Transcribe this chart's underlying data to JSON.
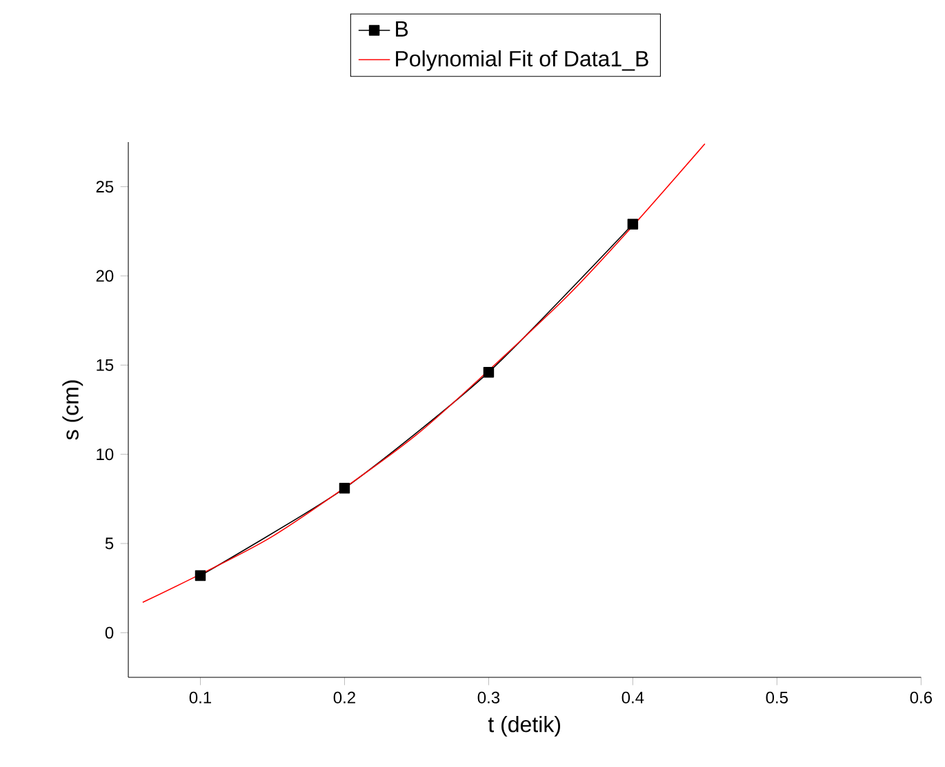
{
  "chart_data": {
    "type": "line",
    "xlabel": "t (detik)",
    "ylabel": "s (cm)",
    "xlim": [
      0.05,
      0.6
    ],
    "ylim": [
      -2.5,
      27.5
    ],
    "xticks": [
      0.1,
      0.2,
      0.3,
      0.4,
      0.5,
      0.6
    ],
    "yticks": [
      0,
      5,
      10,
      15,
      20,
      25
    ],
    "legend": "top",
    "grid": false,
    "series": [
      {
        "name": "B",
        "color": "#000000",
        "marker": "square",
        "x": [
          0.1,
          0.2,
          0.3,
          0.4
        ],
        "values": [
          3.2,
          8.1,
          14.6,
          22.9
        ]
      },
      {
        "name": "Polynomial Fit of Data1_B",
        "color": "#ff0000",
        "marker": "none",
        "x": [
          0.06,
          0.15,
          0.25,
          0.35,
          0.4,
          0.45
        ],
        "values": [
          1.7,
          5.4,
          11.1,
          18.5,
          22.8,
          27.4
        ]
      }
    ]
  }
}
